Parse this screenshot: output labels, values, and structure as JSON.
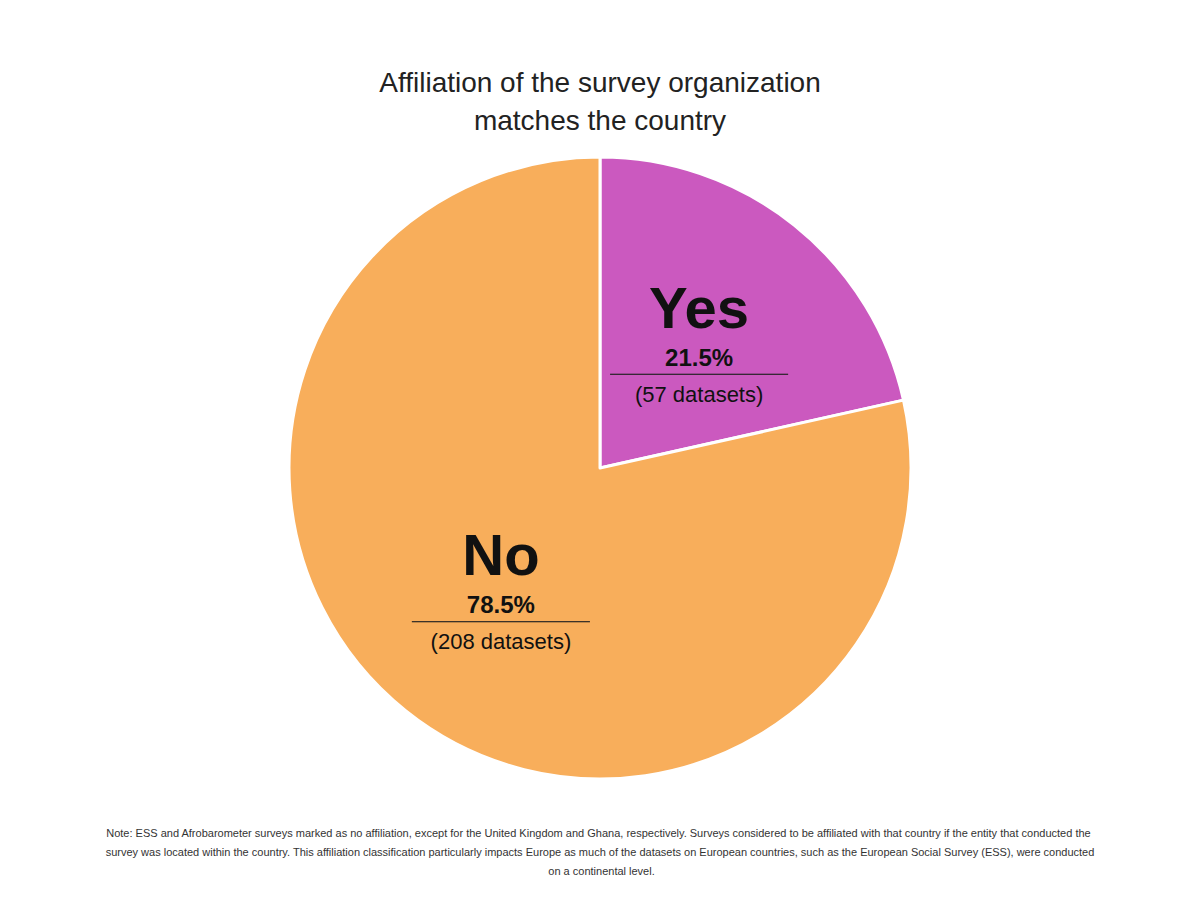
{
  "chart_data": {
    "type": "pie",
    "title": "Affiliation of the survey organization\nmatches the country",
    "categories": [
      "Yes",
      "No"
    ],
    "values": [
      21.5,
      78.5
    ],
    "value_labels": [
      "21.5%",
      "78.5%"
    ],
    "count_labels": [
      "(57 datasets)",
      "(208 datasets)"
    ],
    "colors": [
      "#cb59bf",
      "#f8ae5b"
    ],
    "data_labels": true,
    "note": "Note: ESS and Afrobarometer surveys marked as no affiliation, except for the United Kingdom and Ghana, respectively. Surveys considered to be affiliated with that country if the entity that conducted the survey was located within the country. This affiliation classification particularly impacts Europe as much of the datasets on European countries, such as the European Social Survey (ESS), were conducted on a continental level."
  }
}
